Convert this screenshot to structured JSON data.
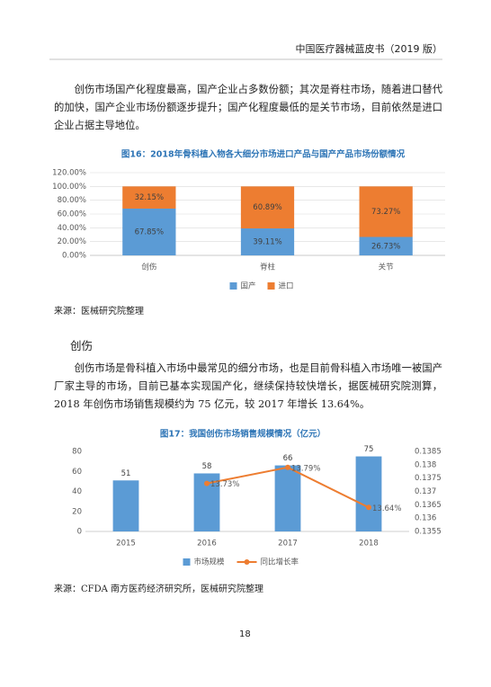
{
  "header": "中国医疗器械蓝皮书（2019 版）",
  "paragraphs": [
    "创伤市场国产化程度最高，国产企业占多数份额；其次是脊柱市场，随着进口替代的加快，国产企业市场份额逐步提升；国产化程度最低的是关节市场，目前依然是进口企业占据主导地位。",
    "创伤市场是骨科植入市场中最常见的细分市场，也是目前骨科植入市场唯一被国产厂家主导的市场，目前已基本实现国产化，继续保持较快增长，据医械研究院测算，2018 年创伤市场销售规模约为 75 亿元，较 2017 年增长 13.64%。"
  ],
  "section_title": "创伤",
  "sources": [
    "来源：医械研究院整理",
    "来源：CFDA 南方医药经济研究所，医械研究院整理"
  ],
  "page_number": "18",
  "chart_data": [
    {
      "type": "bar",
      "stacked": true,
      "grid": true,
      "legend": "bottom",
      "title": "图16：2018年骨科植入物各大细分市场进口产品与国产产品市场份额情况",
      "categories": [
        "创伤",
        "脊柱",
        "关节"
      ],
      "series": [
        {
          "name": "国产",
          "color": "#5b9bd5",
          "values": [
            67.85,
            39.11,
            26.73
          ],
          "value_labels": [
            "67.85%",
            "39.11%",
            "26.73%"
          ]
        },
        {
          "name": "进口",
          "color": "#ed7d31",
          "values": [
            32.15,
            60.89,
            73.27
          ],
          "value_labels": [
            "32.15%",
            "60.89%",
            "73.27%"
          ]
        }
      ],
      "ylim": [
        0,
        120
      ],
      "yticks": [
        {
          "value": 0,
          "label": "0.00%"
        },
        {
          "value": 20,
          "label": "20.00%"
        },
        {
          "value": 40,
          "label": "40.00%"
        },
        {
          "value": 60,
          "label": "60.00%"
        },
        {
          "value": 80,
          "label": "80.00%"
        },
        {
          "value": 100,
          "label": "100.00%"
        },
        {
          "value": 120,
          "label": "120.00%"
        }
      ]
    },
    {
      "type": "bar",
      "stacked": false,
      "grid": false,
      "legend": "bottom",
      "title": "图17：我国创伤市场销售规模情况（亿元）",
      "categories": [
        "2015",
        "2016",
        "2017",
        "2018"
      ],
      "series": [
        {
          "name": "市场规模",
          "color": "#5b9bd5",
          "values": [
            51,
            58,
            66,
            75
          ]
        },
        {
          "name": "同比增长率",
          "color": "#ed7d31",
          "type": "line",
          "axis": "y2",
          "values": [
            null,
            0.1373,
            0.1379,
            0.1364
          ],
          "value_labels": [
            null,
            "13.73%",
            "13.79%",
            "13.64%"
          ]
        }
      ],
      "ylim": [
        0,
        80
      ],
      "yticks": [
        0,
        20,
        40,
        60,
        80
      ],
      "y2lim": [
        0.1355,
        0.1385
      ],
      "y2ticks": [
        0.1355,
        0.136,
        0.1365,
        0.137,
        0.1375,
        0.138,
        0.1385
      ]
    }
  ]
}
